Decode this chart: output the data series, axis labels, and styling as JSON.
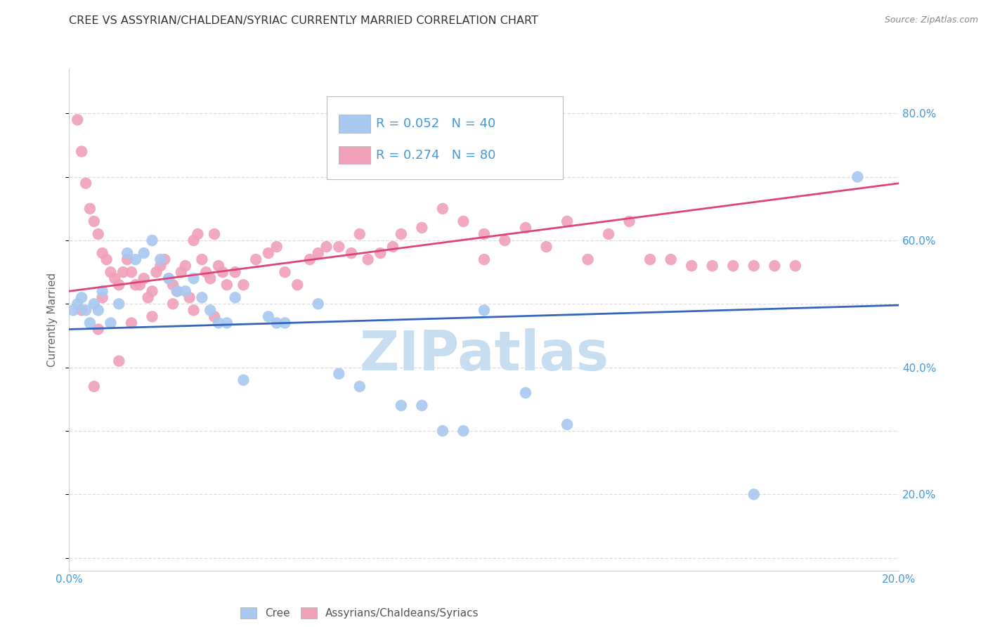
{
  "title": "CREE VS ASSYRIAN/CHALDEAN/SYRIAC CURRENTLY MARRIED CORRELATION CHART",
  "source_text": "Source: ZipAtlas.com",
  "ylabel": "Currently Married",
  "xlim": [
    0.0,
    0.2
  ],
  "ylim": [
    0.08,
    0.87
  ],
  "yticks": [
    0.2,
    0.4,
    0.6,
    0.8
  ],
  "ytick_labels": [
    "20.0%",
    "40.0%",
    "60.0%",
    "80.0%"
  ],
  "blue_color": "#A8C8F0",
  "pink_color": "#F0A0B8",
  "blue_line_color": "#3366BB",
  "pink_line_color": "#DD4477",
  "watermark_text": "ZIPatlas",
  "watermark_color": "#C8DDF0",
  "background_color": "#FFFFFF",
  "grid_color": "#DDDDDD",
  "title_color": "#333333",
  "axis_label_color": "#4499DD",
  "blue_scatter": [
    [
      0.001,
      0.49
    ],
    [
      0.002,
      0.5
    ],
    [
      0.003,
      0.51
    ],
    [
      0.004,
      0.49
    ],
    [
      0.005,
      0.47
    ],
    [
      0.006,
      0.5
    ],
    [
      0.007,
      0.49
    ],
    [
      0.008,
      0.52
    ],
    [
      0.01,
      0.47
    ],
    [
      0.012,
      0.5
    ],
    [
      0.014,
      0.58
    ],
    [
      0.016,
      0.57
    ],
    [
      0.018,
      0.58
    ],
    [
      0.02,
      0.6
    ],
    [
      0.022,
      0.57
    ],
    [
      0.024,
      0.54
    ],
    [
      0.026,
      0.52
    ],
    [
      0.028,
      0.52
    ],
    [
      0.03,
      0.54
    ],
    [
      0.032,
      0.51
    ],
    [
      0.034,
      0.49
    ],
    [
      0.036,
      0.47
    ],
    [
      0.038,
      0.47
    ],
    [
      0.04,
      0.51
    ],
    [
      0.042,
      0.38
    ],
    [
      0.048,
      0.48
    ],
    [
      0.05,
      0.47
    ],
    [
      0.052,
      0.47
    ],
    [
      0.06,
      0.5
    ],
    [
      0.065,
      0.39
    ],
    [
      0.07,
      0.37
    ],
    [
      0.08,
      0.34
    ],
    [
      0.085,
      0.34
    ],
    [
      0.09,
      0.3
    ],
    [
      0.095,
      0.3
    ],
    [
      0.1,
      0.49
    ],
    [
      0.11,
      0.36
    ],
    [
      0.12,
      0.31
    ],
    [
      0.165,
      0.2
    ],
    [
      0.19,
      0.7
    ]
  ],
  "pink_scatter": [
    [
      0.002,
      0.79
    ],
    [
      0.003,
      0.74
    ],
    [
      0.004,
      0.69
    ],
    [
      0.005,
      0.65
    ],
    [
      0.006,
      0.63
    ],
    [
      0.007,
      0.61
    ],
    [
      0.008,
      0.58
    ],
    [
      0.009,
      0.57
    ],
    [
      0.01,
      0.55
    ],
    [
      0.011,
      0.54
    ],
    [
      0.012,
      0.53
    ],
    [
      0.013,
      0.55
    ],
    [
      0.014,
      0.57
    ],
    [
      0.015,
      0.55
    ],
    [
      0.016,
      0.53
    ],
    [
      0.017,
      0.53
    ],
    [
      0.018,
      0.54
    ],
    [
      0.019,
      0.51
    ],
    [
      0.02,
      0.52
    ],
    [
      0.021,
      0.55
    ],
    [
      0.022,
      0.56
    ],
    [
      0.023,
      0.57
    ],
    [
      0.024,
      0.54
    ],
    [
      0.025,
      0.53
    ],
    [
      0.026,
      0.52
    ],
    [
      0.027,
      0.55
    ],
    [
      0.028,
      0.56
    ],
    [
      0.029,
      0.51
    ],
    [
      0.03,
      0.6
    ],
    [
      0.031,
      0.61
    ],
    [
      0.032,
      0.57
    ],
    [
      0.033,
      0.55
    ],
    [
      0.034,
      0.54
    ],
    [
      0.035,
      0.61
    ],
    [
      0.036,
      0.56
    ],
    [
      0.037,
      0.55
    ],
    [
      0.038,
      0.53
    ],
    [
      0.04,
      0.55
    ],
    [
      0.042,
      0.53
    ],
    [
      0.045,
      0.57
    ],
    [
      0.048,
      0.58
    ],
    [
      0.05,
      0.59
    ],
    [
      0.052,
      0.55
    ],
    [
      0.055,
      0.53
    ],
    [
      0.058,
      0.57
    ],
    [
      0.06,
      0.58
    ],
    [
      0.062,
      0.59
    ],
    [
      0.065,
      0.59
    ],
    [
      0.068,
      0.58
    ],
    [
      0.07,
      0.61
    ],
    [
      0.072,
      0.57
    ],
    [
      0.075,
      0.58
    ],
    [
      0.078,
      0.59
    ],
    [
      0.08,
      0.61
    ],
    [
      0.085,
      0.62
    ],
    [
      0.09,
      0.65
    ],
    [
      0.095,
      0.63
    ],
    [
      0.1,
      0.61
    ],
    [
      0.105,
      0.6
    ],
    [
      0.11,
      0.62
    ],
    [
      0.115,
      0.59
    ],
    [
      0.12,
      0.63
    ],
    [
      0.125,
      0.57
    ],
    [
      0.13,
      0.61
    ],
    [
      0.003,
      0.49
    ],
    [
      0.006,
      0.37
    ],
    [
      0.012,
      0.41
    ],
    [
      0.015,
      0.47
    ],
    [
      0.02,
      0.48
    ],
    [
      0.025,
      0.5
    ],
    [
      0.03,
      0.49
    ],
    [
      0.035,
      0.48
    ],
    [
      0.007,
      0.46
    ],
    [
      0.15,
      0.56
    ],
    [
      0.008,
      0.51
    ],
    [
      0.14,
      0.57
    ],
    [
      0.135,
      0.63
    ],
    [
      0.145,
      0.57
    ],
    [
      0.1,
      0.57
    ],
    [
      0.155,
      0.56
    ],
    [
      0.16,
      0.56
    ],
    [
      0.165,
      0.56
    ],
    [
      0.17,
      0.56
    ],
    [
      0.175,
      0.56
    ]
  ],
  "blue_line_x": [
    0.0,
    0.2
  ],
  "blue_line_y": [
    0.46,
    0.498
  ],
  "pink_line_x": [
    0.0,
    0.2
  ],
  "pink_line_y": [
    0.52,
    0.69
  ]
}
